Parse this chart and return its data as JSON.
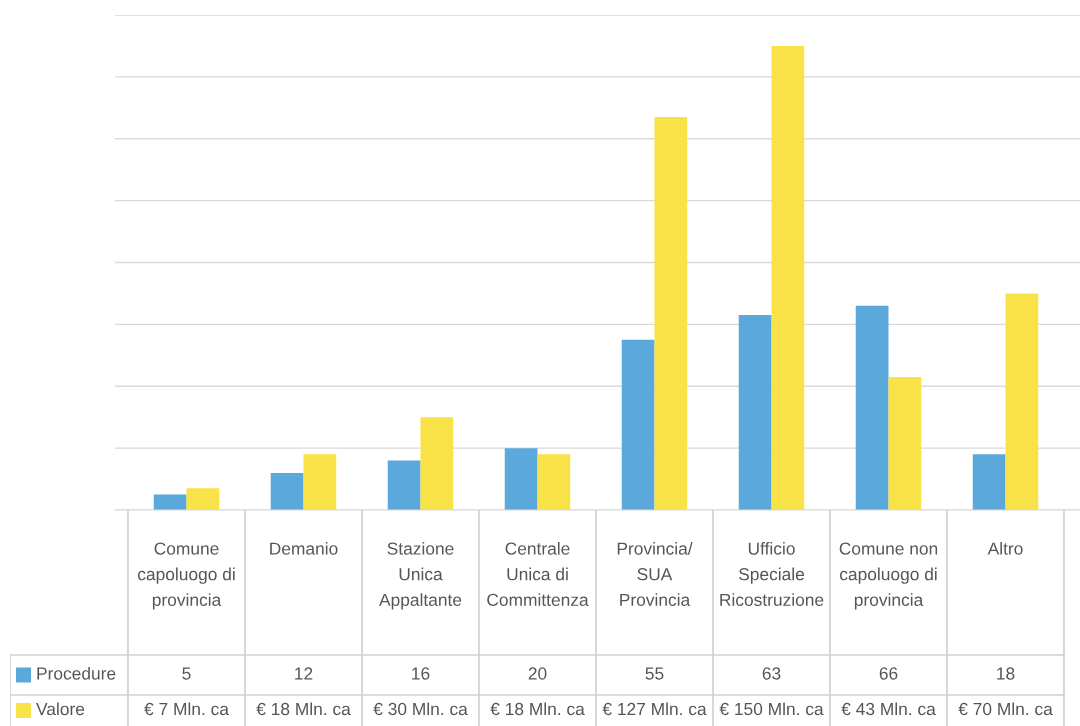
{
  "chart_data": {
    "type": "bar",
    "categories": [
      "Comune\ncapoluogo di\nprovincia",
      "Demanio",
      "Stazione\nUnica\nAppaltante",
      "Centrale\nUnica di\nCommittenza",
      "Provincia/\nSUA\nProvincia",
      "Ufficio\nSpeciale\nRicostruzione",
      "Comune non\ncapoluogo di\nprovincia",
      "Altro"
    ],
    "series": [
      {
        "name": "Procedure",
        "color": "#5ba8dc",
        "values": [
          5,
          12,
          16,
          20,
          55,
          63,
          66,
          18
        ]
      },
      {
        "name": "Valore",
        "color": "#f9e247",
        "values": [
          7,
          18,
          30,
          18,
          127,
          150,
          43,
          70
        ],
        "value_labels": [
          "€ 7 Mln. ca",
          "€ 18 Mln. ca",
          "€ 30 Mln. ca",
          "€ 18 Mln. ca",
          "€ 127 Mln. ca",
          "€ 150 Mln. ca",
          "€ 43 Mln. ca",
          "€ 70 Mln. ca"
        ]
      }
    ],
    "ylim": [
      0,
      160
    ],
    "yticks": [
      {
        "value": 0,
        "label": null
      },
      {
        "value": 20,
        "label": null
      },
      {
        "value": 40,
        "label": null
      },
      {
        "value": 60,
        "label": null
      },
      {
        "value": 80,
        "label": null
      },
      {
        "value": 100,
        "label": null
      },
      {
        "value": 120,
        "label": null
      },
      {
        "value": 140,
        "label": null
      },
      {
        "value": 160,
        "label": null
      }
    ],
    "grid": "y",
    "legend": "bottom left",
    "data_labels": true
  }
}
